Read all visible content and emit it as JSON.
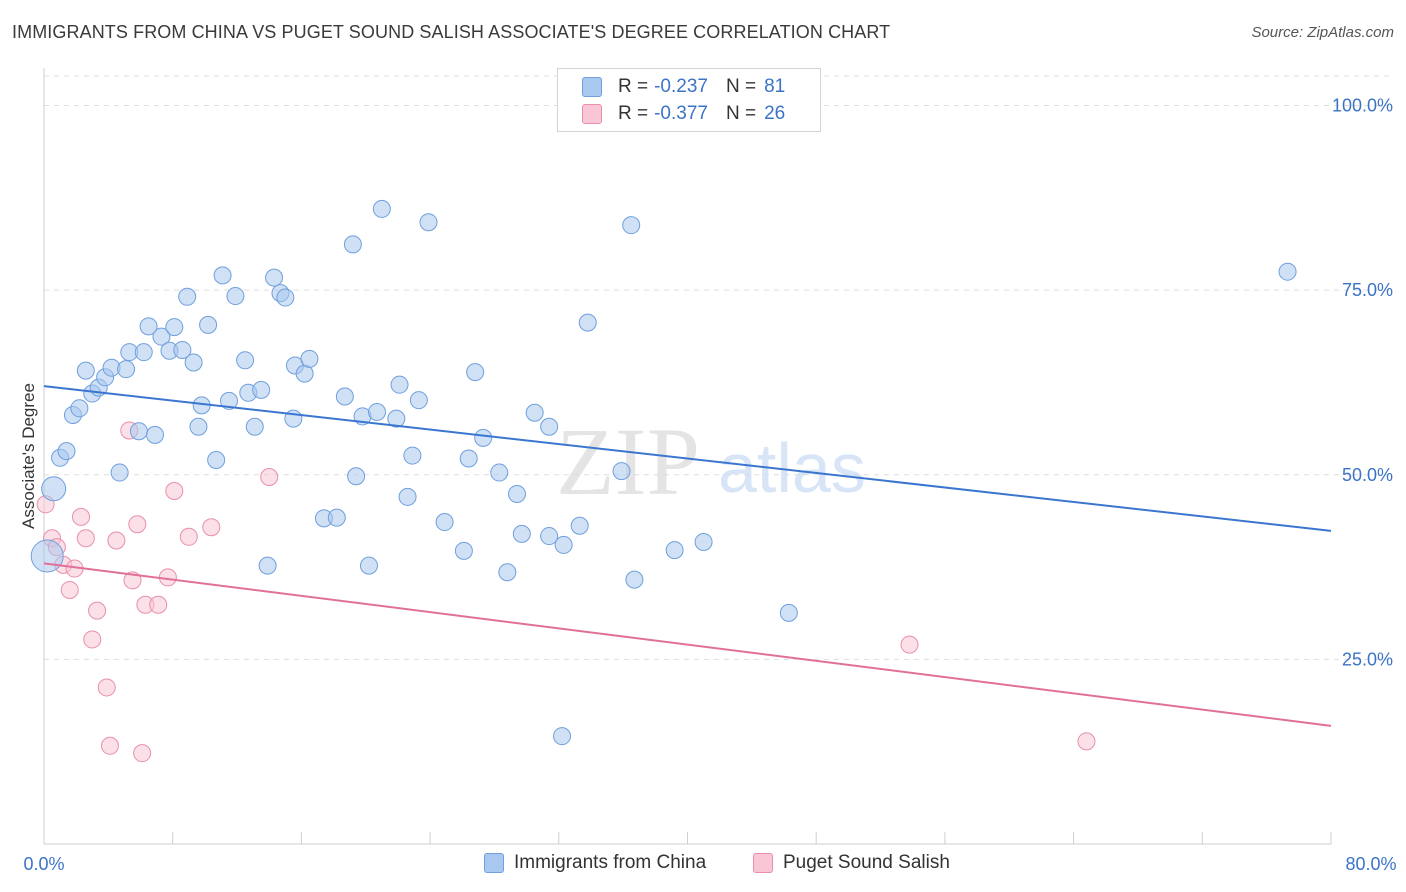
{
  "header": {
    "title": "IMMIGRANTS FROM CHINA VS PUGET SOUND SALISH ASSOCIATE'S DEGREE CORRELATION CHART",
    "source": "Source: ZipAtlas.com"
  },
  "watermark": {
    "zip": "ZIP",
    "atlas": "atlas"
  },
  "legend": {
    "rows": [
      {
        "r_label": "R =",
        "r_value": "-0.237",
        "n_label": "N =",
        "n_value": "81",
        "color": "#a9c8ef",
        "border": "#6f9fdd"
      },
      {
        "r_label": "R =",
        "r_value": "-0.377",
        "n_label": "N =",
        "n_value": "26",
        "color": "#f8c6d4",
        "border": "#e98fab"
      }
    ]
  },
  "bottom_legend": {
    "items": [
      {
        "label": "Immigrants from China",
        "color": "#a9c8ef",
        "border": "#6f9fdd"
      },
      {
        "label": "Puget Sound Salish",
        "color": "#f8c6d4",
        "border": "#e98fab"
      }
    ]
  },
  "chart_data": {
    "type": "scatter",
    "title": "IMMIGRANTS FROM CHINA VS PUGET SOUND SALISH ASSOCIATE'S DEGREE CORRELATION CHART",
    "xlabel": "",
    "ylabel": "Associate's Degree",
    "xlim": [
      0,
      80
    ],
    "ylim": [
      0,
      104
    ],
    "x_tick_labels": [
      "0.0%",
      "80.0%"
    ],
    "y_ticks": [
      25,
      50,
      75,
      100
    ],
    "y_tick_labels": [
      "25.0%",
      "50.0%",
      "75.0%",
      "100.0%"
    ],
    "grid": true,
    "legend_position": "top-center",
    "colors": {
      "china": "#3a76d0",
      "salish": "#e0709a",
      "axis_text": "#3b74c6"
    },
    "series": [
      {
        "name": "Immigrants from China",
        "r": -0.237,
        "n": 81,
        "trend": {
          "x": [
            0,
            80
          ],
          "y": [
            62.0,
            42.4
          ]
        },
        "points": [
          {
            "x": 0.2,
            "y": 39.0,
            "s": 3
          },
          {
            "x": 0.6,
            "y": 48.1,
            "s": 2
          },
          {
            "x": 1.0,
            "y": 52.3,
            "s": 1
          },
          {
            "x": 1.4,
            "y": 53.2,
            "s": 1
          },
          {
            "x": 1.8,
            "y": 58.1,
            "s": 1
          },
          {
            "x": 2.2,
            "y": 59.0,
            "s": 1
          },
          {
            "x": 2.6,
            "y": 64.1,
            "s": 1
          },
          {
            "x": 3.0,
            "y": 61.0,
            "s": 1
          },
          {
            "x": 3.4,
            "y": 61.8,
            "s": 1
          },
          {
            "x": 3.8,
            "y": 63.2,
            "s": 1
          },
          {
            "x": 4.2,
            "y": 64.5,
            "s": 1
          },
          {
            "x": 4.7,
            "y": 50.3,
            "s": 1
          },
          {
            "x": 5.1,
            "y": 64.3,
            "s": 1
          },
          {
            "x": 5.3,
            "y": 66.6,
            "s": 1
          },
          {
            "x": 5.9,
            "y": 55.9,
            "s": 1
          },
          {
            "x": 6.2,
            "y": 66.6,
            "s": 1
          },
          {
            "x": 6.5,
            "y": 70.1,
            "s": 1
          },
          {
            "x": 6.9,
            "y": 55.4,
            "s": 1
          },
          {
            "x": 7.3,
            "y": 68.7,
            "s": 1
          },
          {
            "x": 7.8,
            "y": 66.8,
            "s": 1
          },
          {
            "x": 8.1,
            "y": 70.0,
            "s": 1
          },
          {
            "x": 8.6,
            "y": 66.9,
            "s": 1
          },
          {
            "x": 8.9,
            "y": 74.1,
            "s": 1
          },
          {
            "x": 9.3,
            "y": 65.2,
            "s": 1
          },
          {
            "x": 9.6,
            "y": 56.5,
            "s": 1
          },
          {
            "x": 9.8,
            "y": 59.4,
            "s": 1
          },
          {
            "x": 10.2,
            "y": 70.3,
            "s": 1
          },
          {
            "x": 10.7,
            "y": 52.0,
            "s": 1
          },
          {
            "x": 11.1,
            "y": 77.0,
            "s": 1
          },
          {
            "x": 11.5,
            "y": 60.0,
            "s": 1
          },
          {
            "x": 11.9,
            "y": 74.2,
            "s": 1
          },
          {
            "x": 12.5,
            "y": 65.5,
            "s": 1
          },
          {
            "x": 12.7,
            "y": 61.1,
            "s": 1
          },
          {
            "x": 13.1,
            "y": 56.5,
            "s": 1
          },
          {
            "x": 13.5,
            "y": 61.5,
            "s": 1
          },
          {
            "x": 13.9,
            "y": 37.7,
            "s": 1
          },
          {
            "x": 14.3,
            "y": 76.7,
            "s": 1
          },
          {
            "x": 14.7,
            "y": 74.6,
            "s": 1
          },
          {
            "x": 15.0,
            "y": 74.0,
            "s": 1
          },
          {
            "x": 15.5,
            "y": 57.6,
            "s": 1
          },
          {
            "x": 15.6,
            "y": 64.8,
            "s": 1
          },
          {
            "x": 16.2,
            "y": 63.7,
            "s": 1
          },
          {
            "x": 16.5,
            "y": 65.7,
            "s": 1
          },
          {
            "x": 17.4,
            "y": 44.1,
            "s": 1
          },
          {
            "x": 18.2,
            "y": 44.2,
            "s": 1
          },
          {
            "x": 18.7,
            "y": 60.6,
            "s": 1
          },
          {
            "x": 19.2,
            "y": 81.2,
            "s": 1
          },
          {
            "x": 19.4,
            "y": 49.8,
            "s": 1
          },
          {
            "x": 19.8,
            "y": 57.9,
            "s": 1
          },
          {
            "x": 20.2,
            "y": 37.7,
            "s": 1
          },
          {
            "x": 20.7,
            "y": 58.5,
            "s": 1
          },
          {
            "x": 21.0,
            "y": 86.0,
            "s": 1
          },
          {
            "x": 21.9,
            "y": 57.6,
            "s": 1
          },
          {
            "x": 22.1,
            "y": 62.2,
            "s": 1
          },
          {
            "x": 22.6,
            "y": 47.0,
            "s": 1
          },
          {
            "x": 22.9,
            "y": 52.6,
            "s": 1
          },
          {
            "x": 23.3,
            "y": 60.1,
            "s": 1
          },
          {
            "x": 23.9,
            "y": 84.2,
            "s": 1
          },
          {
            "x": 24.9,
            "y": 43.6,
            "s": 1
          },
          {
            "x": 26.1,
            "y": 39.7,
            "s": 1
          },
          {
            "x": 26.4,
            "y": 52.2,
            "s": 1
          },
          {
            "x": 26.8,
            "y": 63.9,
            "s": 1
          },
          {
            "x": 27.3,
            "y": 55.0,
            "s": 1
          },
          {
            "x": 28.3,
            "y": 50.3,
            "s": 1
          },
          {
            "x": 28.8,
            "y": 36.8,
            "s": 1
          },
          {
            "x": 29.4,
            "y": 47.4,
            "s": 1
          },
          {
            "x": 29.7,
            "y": 42.0,
            "s": 1
          },
          {
            "x": 30.5,
            "y": 58.4,
            "s": 1
          },
          {
            "x": 31.4,
            "y": 56.5,
            "s": 1
          },
          {
            "x": 31.4,
            "y": 41.7,
            "s": 1
          },
          {
            "x": 32.3,
            "y": 40.5,
            "s": 1
          },
          {
            "x": 32.2,
            "y": 14.6,
            "s": 1
          },
          {
            "x": 33.3,
            "y": 43.1,
            "s": 1
          },
          {
            "x": 33.8,
            "y": 70.6,
            "s": 1
          },
          {
            "x": 35.9,
            "y": 50.5,
            "s": 1
          },
          {
            "x": 36.5,
            "y": 83.8,
            "s": 1
          },
          {
            "x": 36.7,
            "y": 35.8,
            "s": 1
          },
          {
            "x": 39.2,
            "y": 39.8,
            "s": 1
          },
          {
            "x": 41.0,
            "y": 40.9,
            "s": 1
          },
          {
            "x": 46.3,
            "y": 31.3,
            "s": 1
          },
          {
            "x": 77.3,
            "y": 77.5,
            "s": 1
          }
        ]
      },
      {
        "name": "Puget Sound Salish",
        "r": -0.377,
        "n": 26,
        "trend": {
          "x": [
            0,
            80
          ],
          "y": [
            38.0,
            16.0
          ]
        },
        "points": [
          {
            "x": 0.1,
            "y": 46.0,
            "s": 1
          },
          {
            "x": 0.5,
            "y": 41.4,
            "s": 1
          },
          {
            "x": 0.8,
            "y": 40.2,
            "s": 1
          },
          {
            "x": 1.2,
            "y": 37.8,
            "s": 1
          },
          {
            "x": 1.6,
            "y": 34.4,
            "s": 1
          },
          {
            "x": 1.9,
            "y": 37.3,
            "s": 1
          },
          {
            "x": 2.3,
            "y": 44.3,
            "s": 1
          },
          {
            "x": 2.6,
            "y": 41.4,
            "s": 1
          },
          {
            "x": 3.0,
            "y": 27.7,
            "s": 1
          },
          {
            "x": 3.3,
            "y": 31.6,
            "s": 1
          },
          {
            "x": 3.9,
            "y": 21.2,
            "s": 1
          },
          {
            "x": 4.1,
            "y": 13.3,
            "s": 1
          },
          {
            "x": 4.5,
            "y": 41.1,
            "s": 1
          },
          {
            "x": 5.3,
            "y": 56.0,
            "s": 1
          },
          {
            "x": 5.5,
            "y": 35.7,
            "s": 1
          },
          {
            "x": 5.8,
            "y": 43.3,
            "s": 1
          },
          {
            "x": 6.1,
            "y": 12.3,
            "s": 1
          },
          {
            "x": 6.3,
            "y": 32.4,
            "s": 1
          },
          {
            "x": 7.1,
            "y": 32.4,
            "s": 1
          },
          {
            "x": 7.7,
            "y": 36.1,
            "s": 1
          },
          {
            "x": 8.1,
            "y": 47.8,
            "s": 1
          },
          {
            "x": 9.0,
            "y": 41.6,
            "s": 1
          },
          {
            "x": 10.4,
            "y": 42.9,
            "s": 1
          },
          {
            "x": 14.0,
            "y": 49.7,
            "s": 1
          },
          {
            "x": 53.8,
            "y": 27.0,
            "s": 1
          },
          {
            "x": 64.8,
            "y": 13.9,
            "s": 1
          }
        ]
      }
    ]
  }
}
